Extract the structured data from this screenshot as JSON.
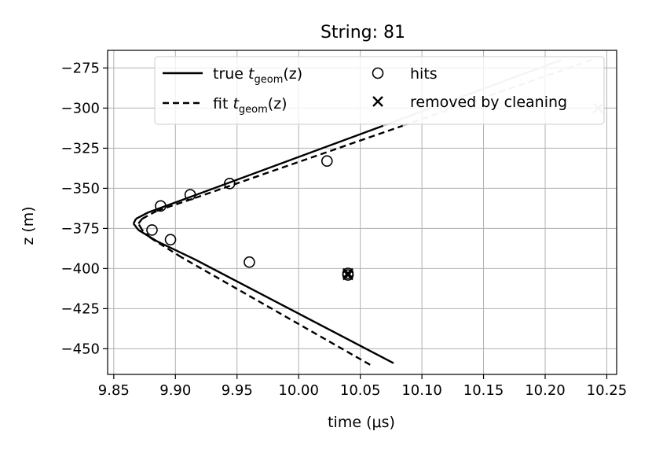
{
  "chart_data": {
    "type": "line",
    "title": "String: 81",
    "xlabel": "time (μs)",
    "ylabel": "z (m)",
    "xlim": [
      9.845,
      10.258
    ],
    "ylim": [
      -466,
      -264
    ],
    "xticks": [
      9.85,
      9.9,
      9.95,
      10.0,
      10.05,
      10.1,
      10.15,
      10.2,
      10.25
    ],
    "xtick_labels": [
      "9.85",
      "9.90",
      "9.95",
      "10.00",
      "10.05",
      "10.10",
      "10.15",
      "10.20",
      "10.25"
    ],
    "yticks": [
      -275,
      -300,
      -325,
      -350,
      -375,
      -400,
      -425,
      -450
    ],
    "ytick_labels": [
      "−275",
      "−300",
      "−325",
      "−350",
      "−375",
      "−400",
      "−425",
      "−450"
    ],
    "grid": true,
    "legend_position": "top",
    "series": [
      {
        "name": "true t_geom(z)",
        "style": "solid",
        "color": "#000000",
        "faded_above_z": -311,
        "x": [
          10.077,
          9.915,
          9.885,
          9.87,
          9.866,
          9.868,
          9.878,
          9.91,
          10.213
        ],
        "y": [
          -459,
          -394,
          -383,
          -376,
          -372,
          -369,
          -365,
          -356,
          -270
        ]
      },
      {
        "name": "fit t_geom(z)",
        "style": "dashed",
        "color": "#000000",
        "faded_above_z": -311,
        "x": [
          10.058,
          9.905,
          9.88,
          9.873,
          9.87,
          9.873,
          9.885,
          9.916,
          10.238
        ],
        "y": [
          -460,
          -393,
          -381,
          -376,
          -372,
          -369,
          -364,
          -356,
          -270
        ]
      }
    ],
    "legend": [
      {
        "label": "true",
        "math": "t",
        "sub": "geom",
        "suffix": "(z)",
        "marker": "solid-line"
      },
      {
        "label": "fit",
        "math": "t",
        "sub": "geom",
        "suffix": "(z)",
        "marker": "dashed-line"
      },
      {
        "label": "hits",
        "marker": "circle"
      },
      {
        "label": "removed by cleaning",
        "marker": "x"
      }
    ],
    "hits": [
      {
        "x": 9.888,
        "y": -361
      },
      {
        "x": 9.912,
        "y": -354
      },
      {
        "x": 9.944,
        "y": -347
      },
      {
        "x": 10.023,
        "y": -333
      },
      {
        "x": 9.881,
        "y": -376
      },
      {
        "x": 9.896,
        "y": -382
      },
      {
        "x": 9.96,
        "y": -396
      },
      {
        "x": 10.04,
        "y": -403
      },
      {
        "x": 10.04,
        "y": -404
      }
    ],
    "removed_by_cleaning": [
      {
        "x": 10.04,
        "y": -403
      },
      {
        "x": 10.04,
        "y": -404
      },
      {
        "x": 10.243,
        "y": -300
      }
    ]
  }
}
